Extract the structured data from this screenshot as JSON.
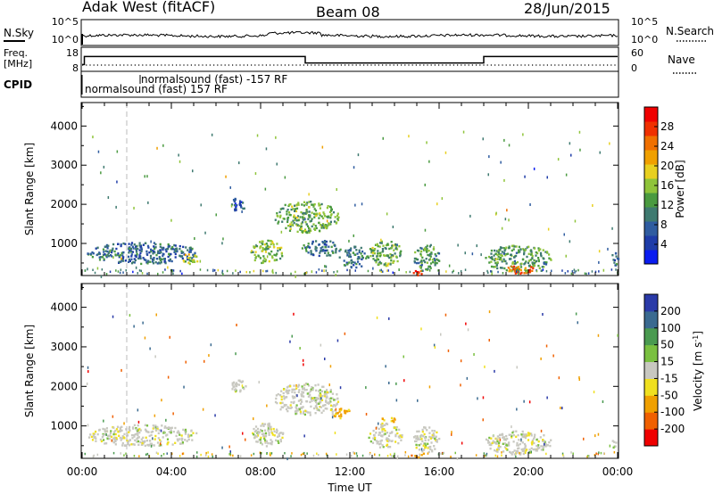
{
  "header": {
    "radar_title": "Adak West (fitACF)",
    "beam": "Beam 08",
    "date": "28/Jun/2015"
  },
  "noise_panel": {
    "left_label": "N.Sky",
    "right_label": "N.Search",
    "left_ticks": [
      "10^5",
      "10^0"
    ],
    "right_ticks": [
      "10^5",
      "10^0"
    ]
  },
  "freq_panel": {
    "left_label_line1": "Freq.",
    "left_label_line2": "[MHz]",
    "left_ticks": [
      "18",
      "8"
    ],
    "right_label": "Nave",
    "right_ticks": [
      "60",
      "0"
    ],
    "freq_steps": [
      {
        "start_hour": 0.0,
        "end_hour": 0.1,
        "value": 10
      },
      {
        "start_hour": 0.1,
        "end_hour": 10.0,
        "value": 15
      },
      {
        "start_hour": 10.0,
        "end_hour": 18.0,
        "value": 11
      },
      {
        "start_hour": 18.0,
        "end_hour": 24.0,
        "value": 15
      }
    ]
  },
  "cpid_panel": {
    "label": "CPID",
    "entries": [
      {
        "text": "normalsound (fast) 157 RF"
      },
      {
        "text": "normalsound (fast) -157 RF"
      }
    ]
  },
  "x_axis": {
    "label": "Time UT",
    "ticks": [
      "00:00",
      "04:00",
      "08:00",
      "12:00",
      "16:00",
      "20:00",
      "00:00"
    ]
  },
  "chart_data": [
    {
      "type": "heatmap",
      "title": "",
      "xlabel": "Time UT",
      "ylabel": "Slant Range [km]",
      "xlim_hours": [
        0,
        24
      ],
      "ylim": [
        180,
        4600
      ],
      "y_ticks": [
        "1000",
        "2000",
        "3000",
        "4000"
      ],
      "colorbar": {
        "label": "Power [dB]",
        "ticks": [
          "28",
          "24",
          "20",
          "16",
          "12",
          "8",
          "4"
        ],
        "range": [
          0,
          30
        ]
      },
      "echo_regions": [
        {
          "start_hour": 0.2,
          "end_hour": 5.2,
          "range_min": 500,
          "range_max": 1050,
          "level": 8
        },
        {
          "start_hour": 4.4,
          "end_hour": 5.2,
          "range_min": 500,
          "range_max": 800,
          "level": 16
        },
        {
          "start_hour": 6.6,
          "end_hour": 7.3,
          "range_min": 1850,
          "range_max": 2200,
          "level": 6
        },
        {
          "start_hour": 7.5,
          "end_hour": 9.0,
          "range_min": 500,
          "range_max": 1100,
          "level": 14
        },
        {
          "start_hour": 8.5,
          "end_hour": 11.5,
          "range_min": 1300,
          "range_max": 2100,
          "level": 13
        },
        {
          "start_hour": 9.8,
          "end_hour": 11.6,
          "range_min": 700,
          "range_max": 1100,
          "level": 8
        },
        {
          "start_hour": 11.5,
          "end_hour": 12.8,
          "range_min": 400,
          "range_max": 950,
          "level": 9
        },
        {
          "start_hour": 12.8,
          "end_hour": 14.3,
          "range_min": 450,
          "range_max": 1100,
          "level": 13
        },
        {
          "start_hour": 14.8,
          "end_hour": 16.0,
          "range_min": 350,
          "range_max": 1000,
          "level": 11
        },
        {
          "start_hour": 14.8,
          "end_hour": 15.4,
          "range_min": 200,
          "range_max": 350,
          "level": 27
        },
        {
          "start_hour": 18.0,
          "end_hour": 21.0,
          "range_min": 300,
          "range_max": 1000,
          "level": 12
        },
        {
          "start_hour": 19.0,
          "end_hour": 20.2,
          "range_min": 250,
          "range_max": 500,
          "level": 24
        },
        {
          "start_hour": 23.7,
          "end_hour": 24.0,
          "range_min": 450,
          "range_max": 800,
          "level": 8
        }
      ]
    },
    {
      "type": "heatmap",
      "title": "",
      "xlabel": "Time UT",
      "ylabel": "Slant Range [km]",
      "xlim_hours": [
        0,
        24
      ],
      "ylim": [
        180,
        4600
      ],
      "y_ticks": [
        "1000",
        "2000",
        "3000",
        "4000"
      ],
      "colorbar": {
        "label": "Velocity [m s^-1]",
        "ticks": [
          "200",
          "100",
          "50",
          "15",
          "-15",
          "-50",
          "-100",
          "-200"
        ]
      },
      "echo_regions": [
        {
          "start_hour": 0.2,
          "end_hour": 5.2,
          "range_min": 500,
          "range_max": 1050,
          "velocity": 0
        },
        {
          "start_hour": 6.6,
          "end_hour": 7.3,
          "range_min": 1850,
          "range_max": 2200,
          "velocity": 0
        },
        {
          "start_hour": 7.5,
          "end_hour": 9.0,
          "range_min": 500,
          "range_max": 1100,
          "velocity": 0
        },
        {
          "start_hour": 8.5,
          "end_hour": 11.5,
          "range_min": 1300,
          "range_max": 2100,
          "velocity": 0
        },
        {
          "start_hour": 11.0,
          "end_hour": 12.0,
          "range_min": 1200,
          "range_max": 1500,
          "velocity": -40
        },
        {
          "start_hour": 12.8,
          "end_hour": 14.3,
          "range_min": 450,
          "range_max": 1100,
          "velocity": 0
        },
        {
          "start_hour": 13.3,
          "end_hour": 14.0,
          "range_min": 1100,
          "range_max": 1250,
          "velocity": -40
        },
        {
          "start_hour": 14.8,
          "end_hour": 16.0,
          "range_min": 350,
          "range_max": 1000,
          "velocity": 0
        },
        {
          "start_hour": 14.7,
          "end_hour": 15.5,
          "range_min": 200,
          "range_max": 330,
          "velocity": -60
        },
        {
          "start_hour": 18.0,
          "end_hour": 21.0,
          "range_min": 300,
          "range_max": 900,
          "velocity": 0
        },
        {
          "start_hour": 23.7,
          "end_hour": 24.0,
          "range_min": 450,
          "range_max": 800,
          "velocity": 0
        }
      ]
    }
  ]
}
